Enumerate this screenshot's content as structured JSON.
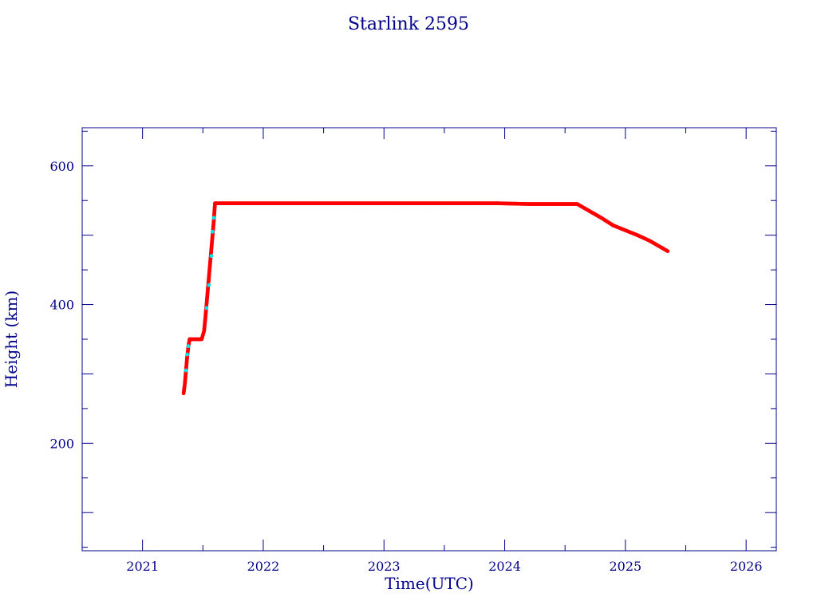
{
  "chart_data": {
    "type": "scatter",
    "title": "Starlink 2595",
    "xlabel": "Time(UTC)",
    "ylabel": "Height (km)",
    "xlim": [
      2020.5,
      2026.25
    ],
    "ylim": [
      45,
      655
    ],
    "x_ticks": [
      2021,
      2022,
      2023,
      2024,
      2025,
      2026
    ],
    "y_ticks": [
      200,
      400,
      600
    ],
    "grid": false,
    "colors": {
      "axes": "#00008b",
      "primary_series": "#ff0000",
      "secondary_series": "#00e5ee"
    },
    "series": [
      {
        "color": "#ff0000",
        "x": [
          2021.34,
          2021.35,
          2021.36,
          2021.37,
          2021.38,
          2021.39,
          2021.4,
          2021.43,
          2021.46,
          2021.49,
          2021.51,
          2021.52,
          2021.53,
          2021.54,
          2021.55,
          2021.56,
          2021.57,
          2021.58,
          2021.59,
          2021.6,
          2021.75,
          2022.0,
          2022.25,
          2022.5,
          2022.75,
          2023.0,
          2023.25,
          2023.5,
          2023.75,
          2023.95,
          2024.2,
          2024.4,
          2024.6,
          2024.7,
          2024.8,
          2024.9,
          2025.0,
          2025.1,
          2025.2,
          2025.3,
          2025.35
        ],
        "y": [
          272,
          285,
          305,
          325,
          340,
          350,
          350,
          350,
          350,
          350,
          362,
          380,
          400,
          420,
          440,
          460,
          480,
          500,
          520,
          546,
          546,
          546,
          546,
          546,
          546,
          546,
          546,
          546,
          546,
          546,
          545,
          545,
          545,
          535,
          525,
          514,
          507,
          500,
          492,
          482,
          477
        ]
      },
      {
        "color": "#00e5ee",
        "x": [
          2021.36,
          2021.37,
          2021.38,
          2021.53,
          2021.55,
          2021.57,
          2021.58,
          2021.59
        ],
        "y": [
          305,
          328,
          340,
          395,
          428,
          470,
          505,
          525
        ]
      }
    ]
  }
}
